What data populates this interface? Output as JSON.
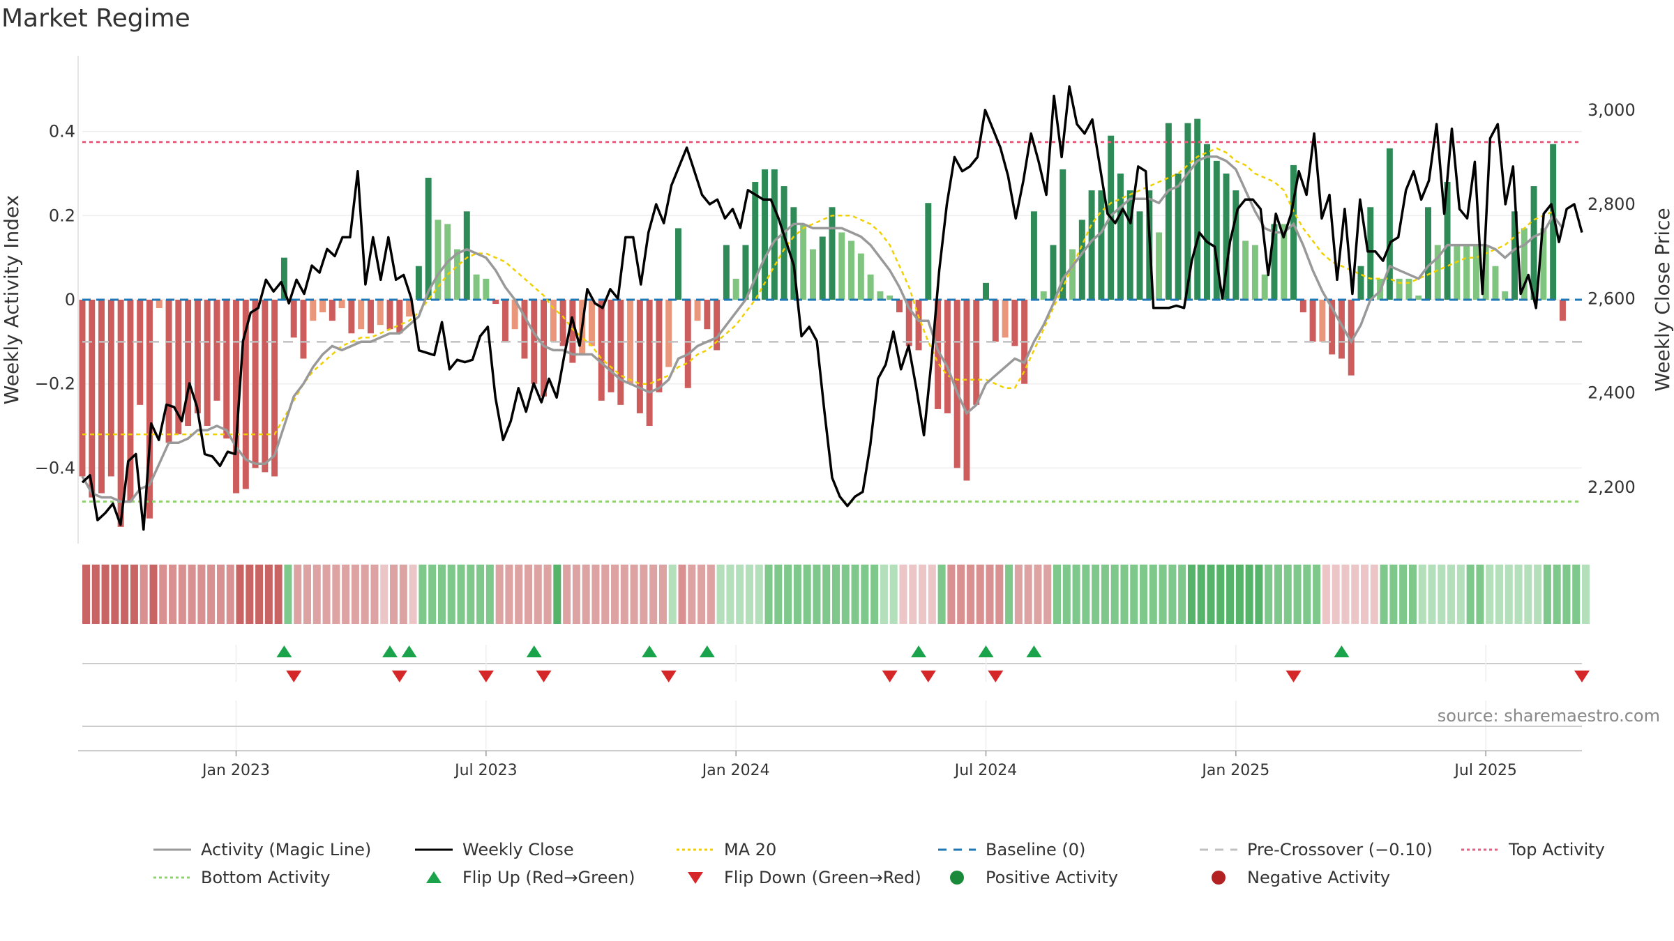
{
  "title": "Market Regime",
  "source": "source: sharemaestro.com",
  "colors": {
    "strong_green": "#2e8b57",
    "light_green": "#7fc47f",
    "strong_red": "#cd5c5c",
    "light_red": "#e9967a",
    "activity_line": "#999999",
    "close_line": "#000000",
    "ma20": "#f0d000",
    "baseline": "#1f77b4",
    "pre_crossover": "#c0c0c0",
    "top_activity": "#e0607e",
    "bottom_activity": "#90d070",
    "flip_up": "#1aa34a",
    "flip_down": "#d62728"
  },
  "legend": [
    {
      "label": "Activity (Magic Line)",
      "kind": "line",
      "color": "#999999"
    },
    {
      "label": "Weekly Close",
      "kind": "line",
      "color": "#000000"
    },
    {
      "label": "MA 20",
      "kind": "dotted",
      "color": "#f0d000"
    },
    {
      "label": "Baseline (0)",
      "kind": "dashed",
      "color": "#1f77b4"
    },
    {
      "label": "Pre-Crossover (−0.10)",
      "kind": "dashed",
      "color": "#c0c0c0"
    },
    {
      "label": "Top Activity",
      "kind": "dotted",
      "color": "#e0607e"
    },
    {
      "label": "Bottom Activity",
      "kind": "dotted",
      "color": "#90d070"
    },
    {
      "label": "Flip Up (Red→Green)",
      "kind": "tri-up",
      "color": "#1aa34a"
    },
    {
      "label": "Flip Down (Green→Red)",
      "kind": "tri-down",
      "color": "#d62728"
    },
    {
      "label": "Positive Activity",
      "kind": "dot",
      "color": "#1a8a3a"
    },
    {
      "label": "Negative Activity",
      "kind": "dot",
      "color": "#b22222"
    }
  ],
  "chart_data": {
    "type": "bar",
    "title": "Market Regime",
    "ylabel": "Weekly Activity Index",
    "y2label": "Weekly Close Price",
    "ylim": [
      -0.58,
      0.58
    ],
    "y2lim": [
      2080,
      3115
    ],
    "y_ticks": [
      0.4,
      0.2,
      0,
      -0.2,
      -0.4
    ],
    "y_tick_labels": [
      "0.4",
      "0.2",
      "0",
      "−0.2",
      "−0.4"
    ],
    "y2_ticks": [
      3000,
      2800,
      2600,
      2400,
      2200
    ],
    "y2_tick_labels": [
      "3,000",
      "2,800",
      "2,600",
      "2,400",
      "2,200"
    ],
    "x_range_weeks": [
      0,
      156
    ],
    "x_ticks": [
      {
        "label": "Jan 2023",
        "week": 16
      },
      {
        "label": "Jul 2023",
        "week": 42
      },
      {
        "label": "Jan 2024",
        "week": 68
      },
      {
        "label": "Jul 2024",
        "week": 94
      },
      {
        "label": "Jan 2025",
        "week": 120
      },
      {
        "label": "Jul 2025",
        "week": 146
      }
    ],
    "reference_lines": {
      "top_activity": 0.375,
      "bottom_activity": -0.48,
      "pre_crossover": -0.1,
      "baseline": 0
    },
    "activity": [
      -0.42,
      -0.47,
      -0.46,
      -0.42,
      -0.54,
      -0.48,
      -0.25,
      -0.52,
      -0.02,
      -0.34,
      -0.32,
      -0.3,
      -0.27,
      -0.3,
      -0.24,
      -0.33,
      -0.46,
      -0.45,
      -0.4,
      -0.41,
      -0.42,
      0.1,
      -0.09,
      -0.14,
      -0.05,
      -0.03,
      -0.05,
      -0.02,
      -0.08,
      -0.07,
      -0.08,
      -0.06,
      -0.07,
      -0.08,
      -0.04,
      0.08,
      0.29,
      0.19,
      0.18,
      0.12,
      0.21,
      0.06,
      0.05,
      -0.01,
      -0.1,
      -0.07,
      -0.14,
      -0.2,
      -0.23,
      -0.1,
      -0.11,
      -0.15,
      -0.13,
      -0.11,
      -0.24,
      -0.22,
      -0.25,
      -0.2,
      -0.27,
      -0.3,
      -0.22,
      -0.16,
      0.17,
      -0.21,
      -0.05,
      -0.07,
      -0.12,
      0.13,
      0.05,
      0.13,
      0.28,
      0.31,
      0.31,
      0.27,
      0.22,
      0.18,
      0.12,
      0.15,
      0.22,
      0.16,
      0.14,
      0.11,
      0.06,
      0.02,
      0.01,
      -0.03,
      -0.11,
      -0.12,
      0.23,
      -0.26,
      -0.27,
      -0.4,
      -0.43,
      -0.25,
      0.04,
      -0.1,
      -0.09,
      -0.11,
      -0.2,
      0.21,
      0.02,
      0.13,
      0.31,
      0.12,
      0.19,
      0.26,
      0.26,
      0.39,
      0.3,
      0.26,
      0.21,
      0.26,
      0.16,
      0.42,
      0.3,
      0.42,
      0.43,
      0.37,
      0.33,
      0.3,
      0.26,
      0.14,
      0.13,
      0.06,
      0.18,
      0.18,
      0.32,
      -0.03,
      -0.1,
      -0.1,
      -0.13,
      -0.14,
      -0.18,
      0.08,
      0.22,
      0.05,
      0.36,
      0.05,
      0.05,
      0.01,
      0.22,
      0.13,
      0.28,
      0.13,
      0.13,
      0.13,
      0.13,
      0.08,
      0.02,
      0.21,
      0.17,
      0.27,
      0.17,
      0.37,
      -0.05
    ],
    "activity_line": [
      -0.42,
      -0.46,
      -0.47,
      -0.47,
      -0.48,
      -0.48,
      -0.45,
      -0.44,
      -0.39,
      -0.34,
      -0.34,
      -0.33,
      -0.31,
      -0.31,
      -0.3,
      -0.31,
      -0.35,
      -0.38,
      -0.39,
      -0.39,
      -0.37,
      -0.3,
      -0.23,
      -0.2,
      -0.16,
      -0.13,
      -0.11,
      -0.12,
      -0.11,
      -0.1,
      -0.1,
      -0.09,
      -0.08,
      -0.08,
      -0.06,
      -0.04,
      0.02,
      0.06,
      0.09,
      0.11,
      0.12,
      0.11,
      0.1,
      0.07,
      0.03,
      0.0,
      -0.04,
      -0.08,
      -0.11,
      -0.12,
      -0.12,
      -0.13,
      -0.13,
      -0.13,
      -0.15,
      -0.17,
      -0.19,
      -0.2,
      -0.21,
      -0.22,
      -0.21,
      -0.19,
      -0.14,
      -0.13,
      -0.11,
      -0.1,
      -0.09,
      -0.06,
      -0.03,
      0.0,
      0.05,
      0.1,
      0.14,
      0.16,
      0.18,
      0.18,
      0.17,
      0.17,
      0.17,
      0.17,
      0.16,
      0.15,
      0.13,
      0.1,
      0.07,
      0.03,
      -0.02,
      -0.05,
      -0.05,
      -0.12,
      -0.16,
      -0.22,
      -0.27,
      -0.25,
      -0.2,
      -0.18,
      -0.16,
      -0.14,
      -0.15,
      -0.1,
      -0.06,
      -0.01,
      0.05,
      0.08,
      0.11,
      0.14,
      0.16,
      0.2,
      0.22,
      0.24,
      0.24,
      0.24,
      0.23,
      0.26,
      0.27,
      0.3,
      0.33,
      0.34,
      0.34,
      0.33,
      0.31,
      0.26,
      0.21,
      0.17,
      0.16,
      0.16,
      0.18,
      0.13,
      0.07,
      0.02,
      -0.02,
      -0.06,
      -0.1,
      -0.06,
      0.0,
      0.02,
      0.08,
      0.07,
      0.06,
      0.05,
      0.08,
      0.1,
      0.13,
      0.13,
      0.13,
      0.13,
      0.13,
      0.12,
      0.1,
      0.12,
      0.13,
      0.15,
      0.16,
      0.2,
      0.17
    ],
    "weekly_close": [
      2210,
      2225,
      2130,
      2145,
      2165,
      2120,
      2255,
      2270,
      2110,
      2335,
      2300,
      2375,
      2370,
      2340,
      2420,
      2370,
      2270,
      2265,
      2245,
      2275,
      2270,
      2510,
      2570,
      2580,
      2640,
      2615,
      2635,
      2590,
      2640,
      2610,
      2670,
      2655,
      2705,
      2690,
      2730,
      2730,
      2870,
      2630,
      2730,
      2640,
      2730,
      2640,
      2650,
      2600,
      2490,
      2485,
      2480,
      2550,
      2450,
      2470,
      2465,
      2470,
      2520,
      2540,
      2390,
      2300,
      2340,
      2410,
      2360,
      2420,
      2380,
      2430,
      2390,
      2480,
      2560,
      2500,
      2620,
      2590,
      2580,
      2620,
      2600,
      2730,
      2730,
      2630,
      2740,
      2800,
      2760,
      2840,
      2880,
      2920,
      2870,
      2820,
      2800,
      2810,
      2770,
      2790,
      2750,
      2830,
      2820,
      2810,
      2810,
      2770,
      2720,
      2670,
      2520,
      2540,
      2510,
      2360,
      2220,
      2180,
      2160,
      2180,
      2190,
      2290,
      2430,
      2460,
      2530,
      2450,
      2500,
      2410,
      2310,
      2470,
      2660,
      2800,
      2900,
      2870,
      2880,
      2900,
      3000,
      2960,
      2920,
      2860,
      2770,
      2850,
      2950,
      2890,
      2820,
      3030,
      2900,
      3050,
      2970,
      2950,
      2980,
      2880,
      2780,
      2760,
      2790,
      2760,
      2880,
      2870,
      2580,
      2580,
      2580,
      2585,
      2580,
      2680,
      2740,
      2720,
      2710,
      2600,
      2720,
      2790,
      2810,
      2810,
      2790,
      2650,
      2780,
      2730,
      2780,
      2870,
      2820,
      2950,
      2770,
      2820,
      2640,
      2790,
      2610,
      2810,
      2700,
      2700,
      2680,
      2720,
      2730,
      2830,
      2870,
      2810,
      2850,
      2970,
      2780,
      2960,
      2790,
      2770,
      2890,
      2610,
      2940,
      2970,
      2800,
      2880,
      2610,
      2650,
      2580,
      2780,
      2800,
      2720,
      2790,
      2800,
      2740
    ],
    "ma20": [
      -0.32,
      -0.32,
      -0.32,
      -0.32,
      -0.32,
      -0.32,
      -0.32,
      -0.32,
      -0.32,
      -0.32,
      -0.32,
      -0.32,
      -0.32,
      -0.32,
      -0.32,
      -0.32,
      -0.32,
      -0.32,
      -0.32,
      -0.32,
      -0.32,
      -0.28,
      -0.24,
      -0.2,
      -0.17,
      -0.15,
      -0.13,
      -0.11,
      -0.1,
      -0.09,
      -0.09,
      -0.08,
      -0.07,
      -0.06,
      -0.05,
      -0.03,
      0.0,
      0.03,
      0.06,
      0.08,
      0.1,
      0.11,
      0.11,
      0.1,
      0.09,
      0.07,
      0.05,
      0.03,
      0.01,
      -0.02,
      -0.04,
      -0.07,
      -0.09,
      -0.11,
      -0.14,
      -0.16,
      -0.18,
      -0.19,
      -0.2,
      -0.2,
      -0.19,
      -0.18,
      -0.16,
      -0.15,
      -0.13,
      -0.12,
      -0.1,
      -0.08,
      -0.06,
      -0.03,
      0.0,
      0.04,
      0.08,
      0.12,
      0.15,
      0.17,
      0.18,
      0.19,
      0.2,
      0.2,
      0.2,
      0.19,
      0.18,
      0.16,
      0.13,
      0.08,
      0.03,
      -0.04,
      -0.1,
      -0.15,
      -0.18,
      -0.19,
      -0.19,
      -0.19,
      -0.19,
      -0.2,
      -0.21,
      -0.21,
      -0.17,
      -0.12,
      -0.07,
      -0.02,
      0.03,
      0.08,
      0.13,
      0.18,
      0.21,
      0.23,
      0.24,
      0.25,
      0.26,
      0.27,
      0.28,
      0.29,
      0.3,
      0.32,
      0.34,
      0.35,
      0.36,
      0.35,
      0.33,
      0.32,
      0.3,
      0.29,
      0.28,
      0.26,
      0.21,
      0.17,
      0.14,
      0.11,
      0.09,
      0.08,
      0.07,
      0.06,
      0.05,
      0.05,
      0.05,
      0.04,
      0.04,
      0.05,
      0.06,
      0.07,
      0.08,
      0.09,
      0.1,
      0.1,
      0.11,
      0.12,
      0.13,
      0.15,
      0.17,
      0.19,
      0.2,
      0.21
    ],
    "regime_strip": [
      "r3",
      "r3",
      "r3",
      "r3",
      "r3",
      "r3",
      "r2",
      "r3",
      "r2",
      "r2",
      "r2",
      "r2",
      "r2",
      "r2",
      "r2",
      "r2",
      "r3",
      "r3",
      "r3",
      "r3",
      "r3",
      "g1",
      "r1",
      "r1",
      "r1",
      "r1",
      "r1",
      "r1",
      "r1",
      "r1",
      "r1",
      "r0",
      "r1",
      "r1",
      "r0",
      "g1",
      "g1",
      "g1",
      "g1",
      "g1",
      "g1",
      "g1",
      "g1",
      "r1",
      "r1",
      "r1",
      "r1",
      "r1",
      "r1",
      "g2",
      "r1",
      "r1",
      "r1",
      "r1",
      "r1",
      "r1",
      "r1",
      "r1",
      "r1",
      "r1",
      "r1",
      "g0",
      "r2",
      "r1",
      "r1",
      "r1",
      "g0",
      "g0",
      "g0",
      "g0",
      "g0",
      "g1",
      "g1",
      "g1",
      "g1",
      "g1",
      "g1",
      "g1",
      "g1",
      "g1",
      "g1",
      "g1",
      "g1",
      "g0",
      "g0",
      "r0",
      "r0",
      "r0",
      "r0",
      "g1",
      "r2",
      "r2",
      "r2",
      "r2",
      "r2",
      "r2",
      "g1",
      "r1",
      "r1",
      "r1",
      "r1",
      "g1",
      "g1",
      "g1",
      "g1",
      "g1",
      "g1",
      "g1",
      "g1",
      "g1",
      "g1",
      "g1",
      "g1",
      "g1",
      "g1",
      "g2",
      "g2",
      "g2",
      "g2",
      "g2",
      "g2",
      "g2",
      "g2",
      "g1",
      "g1",
      "g1",
      "g1",
      "g1",
      "g1",
      "r0",
      "r0",
      "r0",
      "r0",
      "r0",
      "r0",
      "g1",
      "g1",
      "g1",
      "g1",
      "g0",
      "g0",
      "g0",
      "g0",
      "g0",
      "g1",
      "g1",
      "g0",
      "g0",
      "g0",
      "g0",
      "g0",
      "g0",
      "g1",
      "g1",
      "g1",
      "g1",
      "g0"
    ],
    "flip_up_weeks": [
      21,
      32,
      34,
      47,
      59,
      65,
      87,
      94,
      99,
      131
    ],
    "flip_down_weeks": [
      22,
      33,
      42,
      48,
      61,
      84,
      88,
      95,
      126,
      156
    ]
  }
}
